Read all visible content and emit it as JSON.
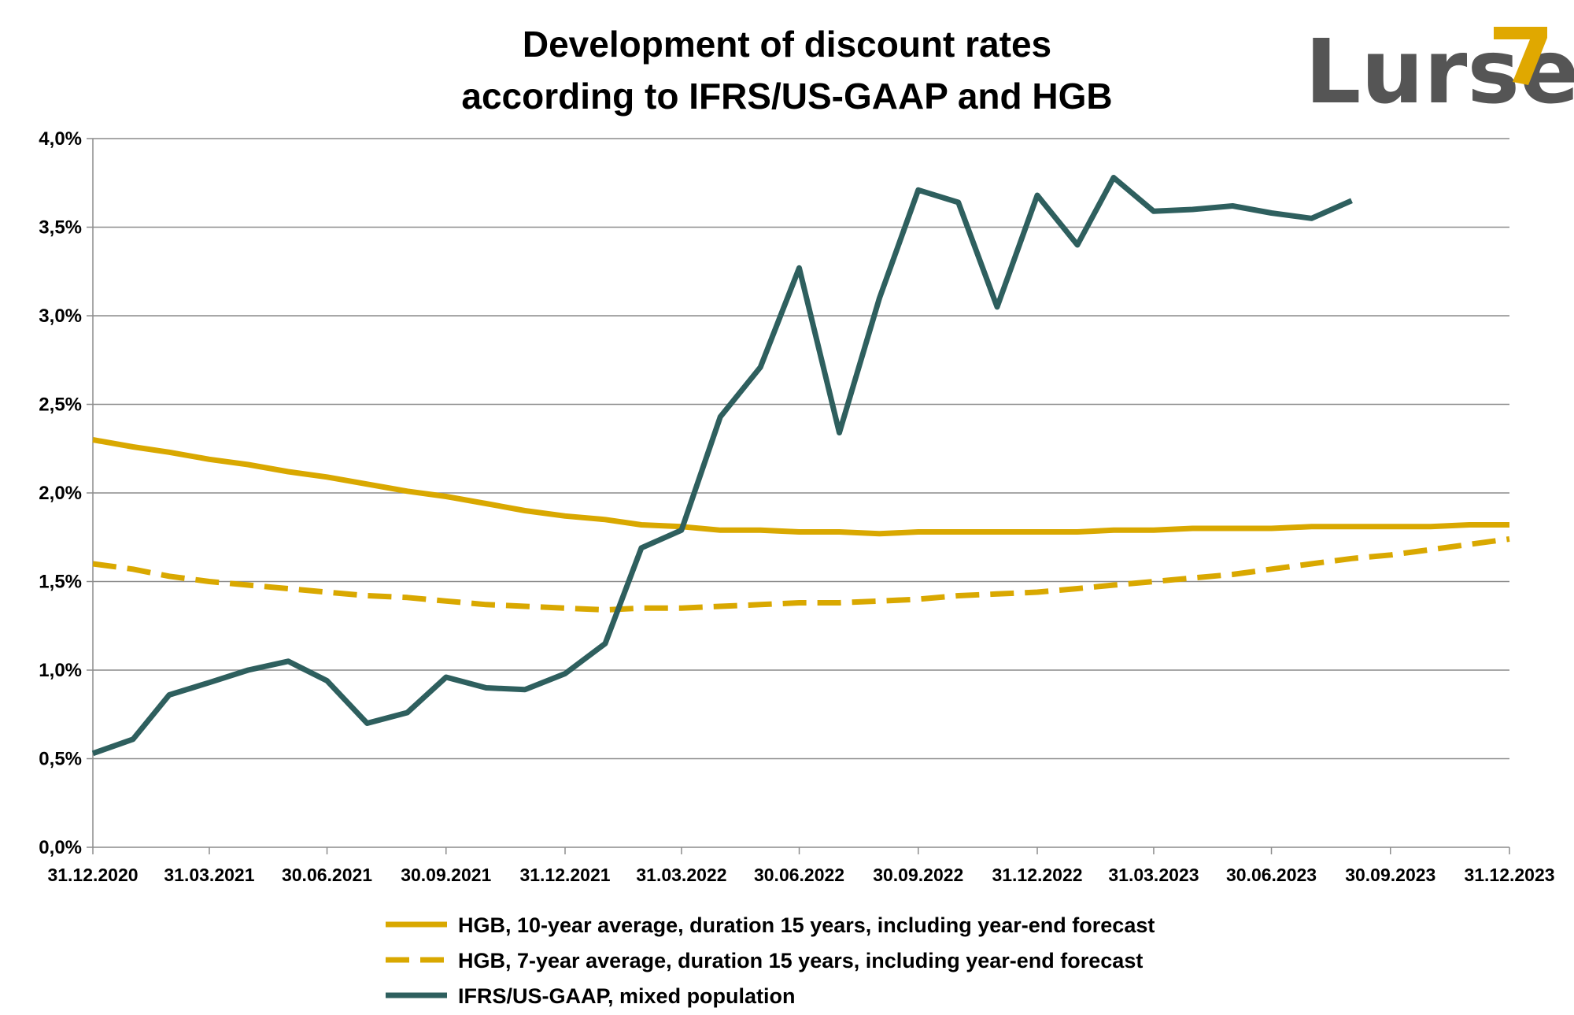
{
  "logo": {
    "text": "Lurse",
    "text_color": "#555555",
    "accent_color": "#e0a800"
  },
  "chart_data": {
    "type": "line",
    "title": "Development of discount rates according to IFRS/US-GAAP and HGB",
    "title_lines": [
      "Development of discount rates",
      "according to IFRS/US-GAAP and HGB"
    ],
    "xlabel": "",
    "ylabel": "",
    "x_start": "31.12.2020",
    "x_end": "31.12.2023",
    "x_tick_labels": [
      "31.12.2020",
      "31.03.2021",
      "30.06.2021",
      "30.09.2021",
      "31.12.2021",
      "31.03.2022",
      "30.06.2022",
      "30.09.2022",
      "31.12.2022",
      "31.03.2023",
      "30.06.2023",
      "30.09.2023",
      "31.12.2023"
    ],
    "y_tick_labels": [
      "0,0%",
      "0,5%",
      "1,0%",
      "1,5%",
      "2,0%",
      "2,5%",
      "3,0%",
      "3,5%",
      "4,0%"
    ],
    "ylim": [
      0,
      4.0
    ],
    "grid": "horizontal",
    "legend_position": "bottom",
    "x_dates": [
      "31.12.2020",
      "31.01.2021",
      "28.02.2021",
      "31.03.2021",
      "30.04.2021",
      "31.05.2021",
      "30.06.2021",
      "31.07.2021",
      "31.08.2021",
      "30.09.2021",
      "31.10.2021",
      "30.11.2021",
      "31.12.2021",
      "31.01.2022",
      "28.02.2022",
      "31.03.2022",
      "30.04.2022",
      "31.05.2022",
      "30.06.2022",
      "31.07.2022",
      "31.08.2022",
      "30.09.2022",
      "31.10.2022",
      "30.11.2022",
      "31.12.2022",
      "31.01.2023",
      "28.02.2023",
      "31.03.2023",
      "30.04.2023",
      "31.05.2023",
      "30.06.2023",
      "31.07.2023",
      "31.08.2023",
      "30.09.2023",
      "31.10.2023",
      "30.11.2023",
      "31.12.2023"
    ],
    "series": [
      {
        "name": "HGB, 10-year average, duration 15 years, including year-end forecast",
        "color": "#d9a800",
        "style": "solid",
        "values": [
          2.3,
          2.26,
          2.23,
          2.19,
          2.16,
          2.12,
          2.09,
          2.05,
          2.01,
          1.98,
          1.94,
          1.9,
          1.87,
          1.85,
          1.82,
          1.81,
          1.79,
          1.79,
          1.78,
          1.78,
          1.77,
          1.78,
          1.78,
          1.78,
          1.78,
          1.78,
          1.79,
          1.79,
          1.8,
          1.8,
          1.8,
          1.81,
          1.81,
          1.81,
          1.81,
          1.82,
          1.82
        ]
      },
      {
        "name": "HGB, 7-year average, duration 15 years, including year-end forecast",
        "color": "#d9a800",
        "style": "dashed",
        "values": [
          1.6,
          1.57,
          1.53,
          1.5,
          1.48,
          1.46,
          1.44,
          1.42,
          1.41,
          1.39,
          1.37,
          1.36,
          1.35,
          1.34,
          1.35,
          1.35,
          1.36,
          1.37,
          1.38,
          1.38,
          1.39,
          1.4,
          1.42,
          1.43,
          1.44,
          1.46,
          1.48,
          1.5,
          1.52,
          1.54,
          1.57,
          1.6,
          1.63,
          1.65,
          1.68,
          1.71,
          1.74
        ]
      },
      {
        "name": "IFRS/US-GAAP, mixed population",
        "color": "#2e5f5e",
        "style": "solid",
        "values": [
          0.53,
          0.61,
          0.86,
          0.93,
          1.0,
          1.05,
          0.94,
          0.7,
          0.76,
          0.96,
          0.9,
          0.89,
          0.98,
          1.15,
          1.69,
          1.79,
          2.43,
          2.71,
          3.27,
          2.34,
          3.1,
          3.71,
          3.64,
          3.05,
          3.68,
          3.4,
          3.78,
          3.59,
          3.6,
          3.62,
          3.58,
          3.55,
          3.65
        ]
      }
    ]
  }
}
